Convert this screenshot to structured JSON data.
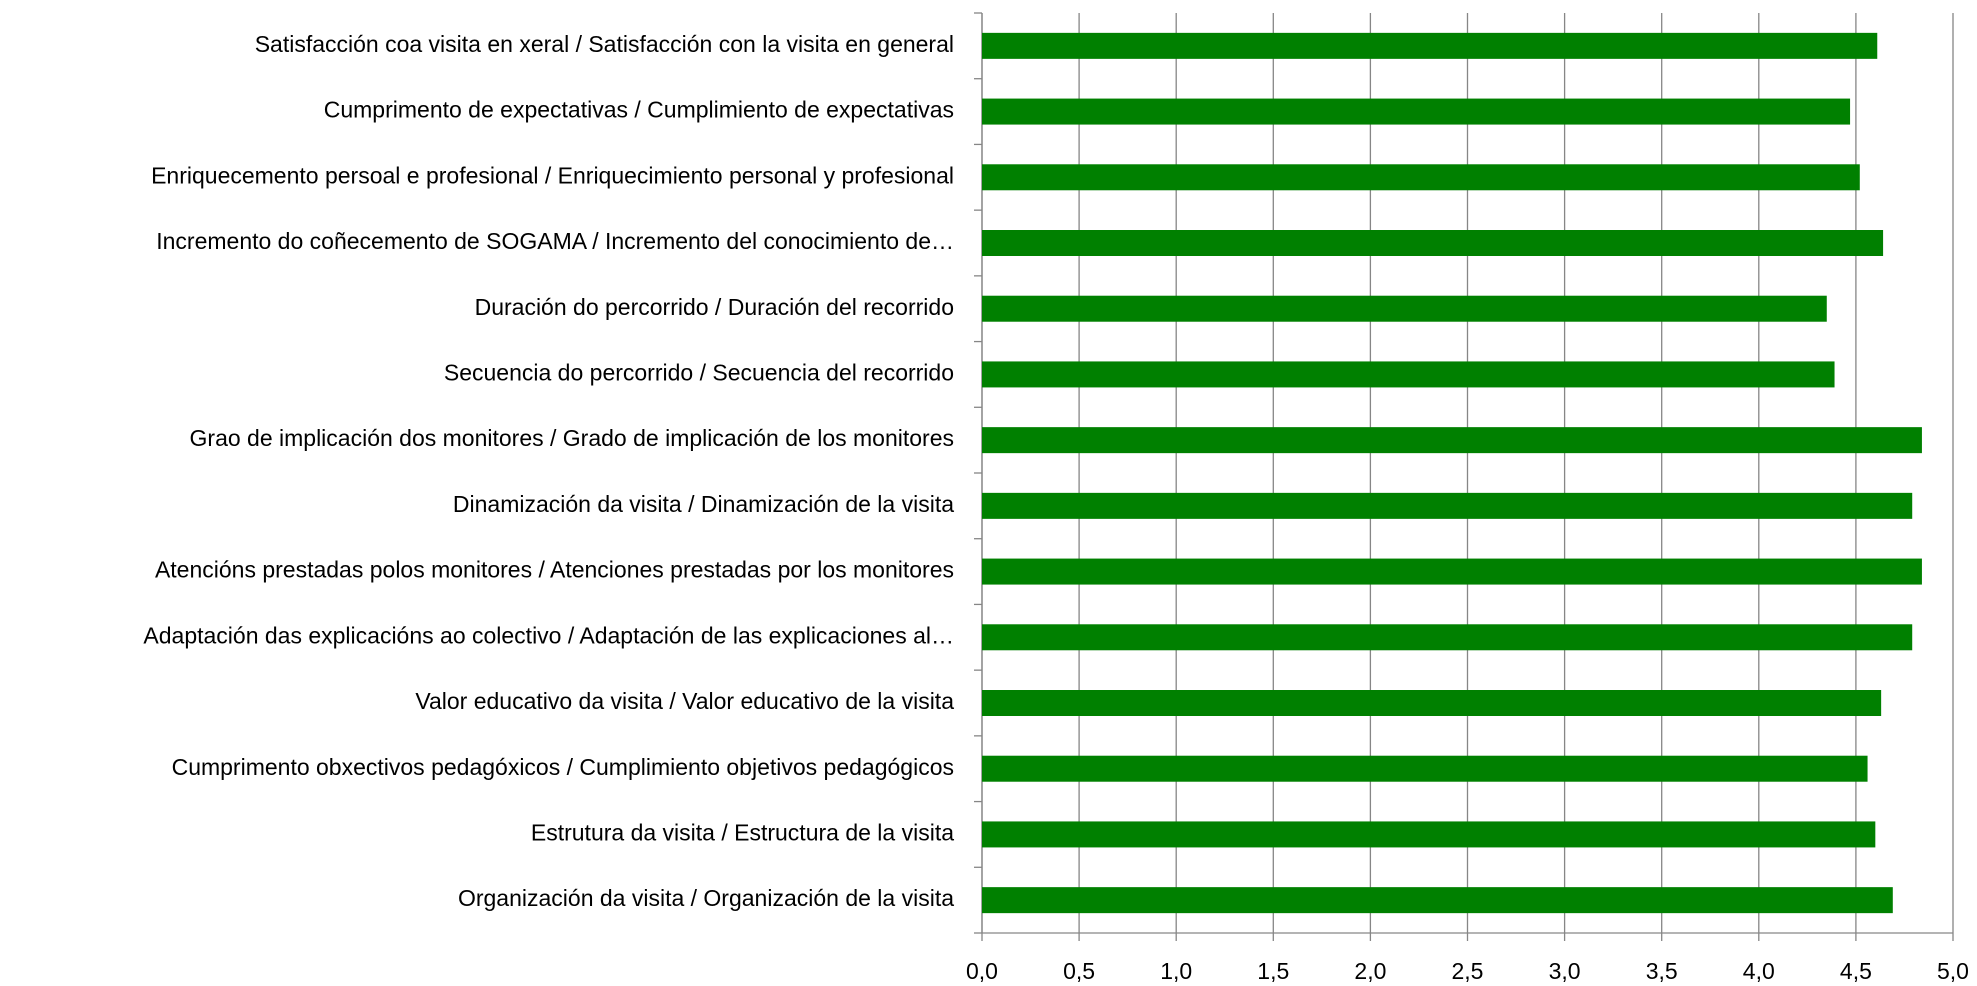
{
  "chart_data": {
    "type": "barh",
    "categories": [
      "Satisfacción coa visita en xeral / Satisfacción con la visita en general",
      "Cumprimento de expectativas / Cumplimiento de expectativas",
      "Enriquecemento persoal e profesional / Enriquecimiento personal y profesional",
      "Incremento do coñecemento de SOGAMA / Incremento del conocimiento de…",
      "Duración do percorrido / Duración del recorrido",
      "Secuencia do percorrido / Secuencia del recorrido",
      "Grao de implicación dos monitores / Grado de implicación de los monitores",
      "Dinamización da visita / Dinamización de la visita",
      "Atencións prestadas polos monitores / Atenciones prestadas por los monitores",
      "Adaptación das explicacións ao colectivo / Adaptación de las explicaciones al…",
      "Valor educativo da visita / Valor educativo de la visita",
      "Cumprimento obxectivos pedagóxicos / Cumplimiento objetivos pedagógicos",
      "Estrutura da visita / Estructura de la visita",
      "Organización da visita / Organización de la visita"
    ],
    "values": [
      4.61,
      4.47,
      4.52,
      4.64,
      4.35,
      4.39,
      4.84,
      4.79,
      4.84,
      4.79,
      4.63,
      4.56,
      4.6,
      4.69
    ],
    "color": "#008000",
    "xlim": [
      0,
      5
    ],
    "xticks": [
      {
        "value": 0,
        "label": "0,0"
      },
      {
        "value": 0.5,
        "label": "0,5"
      },
      {
        "value": 1,
        "label": "1,0"
      },
      {
        "value": 1.5,
        "label": "1,5"
      },
      {
        "value": 2,
        "label": "2,0"
      },
      {
        "value": 2.5,
        "label": "2,5"
      },
      {
        "value": 3,
        "label": "3,0"
      },
      {
        "value": 3.5,
        "label": "3,5"
      },
      {
        "value": 4,
        "label": "4,0"
      },
      {
        "value": 4.5,
        "label": "4,5"
      },
      {
        "value": 5,
        "label": "5,0"
      }
    ],
    "grid": true
  }
}
